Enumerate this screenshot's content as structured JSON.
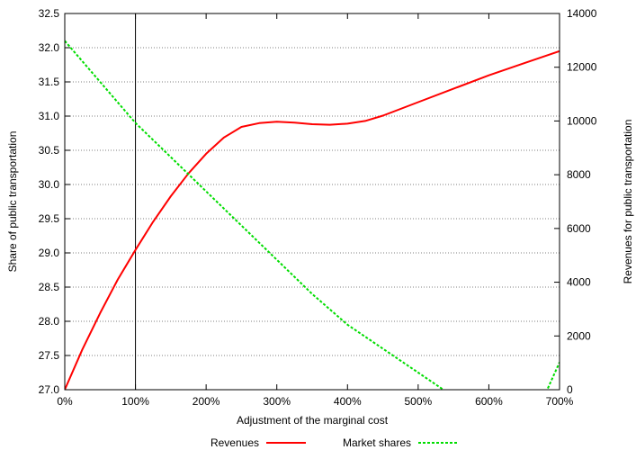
{
  "chart_data": {
    "type": "line",
    "title": "",
    "xlabel": "Adjustment of the marginal cost",
    "ylabel_left": "Share of public transportation",
    "ylabel_right": "Revenues for public transportation",
    "xlim": [
      0,
      700
    ],
    "ylim_left": [
      27.0,
      32.5
    ],
    "ylim_right": [
      0,
      14000
    ],
    "x_ticks": [
      "0%",
      "100%",
      "200%",
      "300%",
      "400%",
      "500%",
      "600%",
      "700%"
    ],
    "x_tick_values": [
      0,
      100,
      200,
      300,
      400,
      500,
      600,
      700
    ],
    "y_left_ticks": [
      "27.0",
      "27.5",
      "28.0",
      "28.5",
      "29.0",
      "29.5",
      "30.0",
      "30.5",
      "31.0",
      "31.5",
      "32.0",
      "32.5"
    ],
    "y_left_tick_values": [
      27.0,
      27.5,
      28.0,
      28.5,
      29.0,
      29.5,
      30.0,
      30.5,
      31.0,
      31.5,
      32.0,
      32.5
    ],
    "y_right_ticks": [
      "0",
      "2000",
      "4000",
      "6000",
      "8000",
      "10000",
      "12000",
      "14000"
    ],
    "y_right_tick_values": [
      0,
      2000,
      4000,
      6000,
      8000,
      10000,
      12000,
      14000
    ],
    "grid": true,
    "legend_position": "bottom",
    "reference_line_x": 100,
    "series": [
      {
        "name": "Revenues",
        "axis": "right",
        "color": "#ff0000",
        "style": "solid",
        "x": [
          0,
          25,
          50,
          75,
          100,
          125,
          150,
          175,
          200,
          225,
          250,
          275,
          300,
          325,
          350,
          375,
          400,
          425,
          450,
          500,
          550,
          600,
          650,
          700
        ],
        "values": [
          0,
          1500,
          2850,
          4100,
          5200,
          6250,
          7200,
          8050,
          8780,
          9380,
          9780,
          9920,
          9970,
          9940,
          9880,
          9860,
          9900,
          10000,
          10200,
          10700,
          11200,
          11700,
          12150,
          12600
        ]
      },
      {
        "name": "Market shares",
        "axis": "left",
        "color": "#00dd00",
        "style": "dashed",
        "x": [
          0,
          50,
          100,
          150,
          200,
          250,
          300,
          350,
          400,
          450,
          500,
          550,
          600,
          650,
          700
        ],
        "values": [
          32.1,
          31.5,
          30.9,
          30.4,
          29.9,
          29.4,
          28.9,
          28.4,
          27.95,
          27.6,
          27.25,
          26.9,
          26.6,
          26.25,
          27.4
        ]
      }
    ]
  }
}
